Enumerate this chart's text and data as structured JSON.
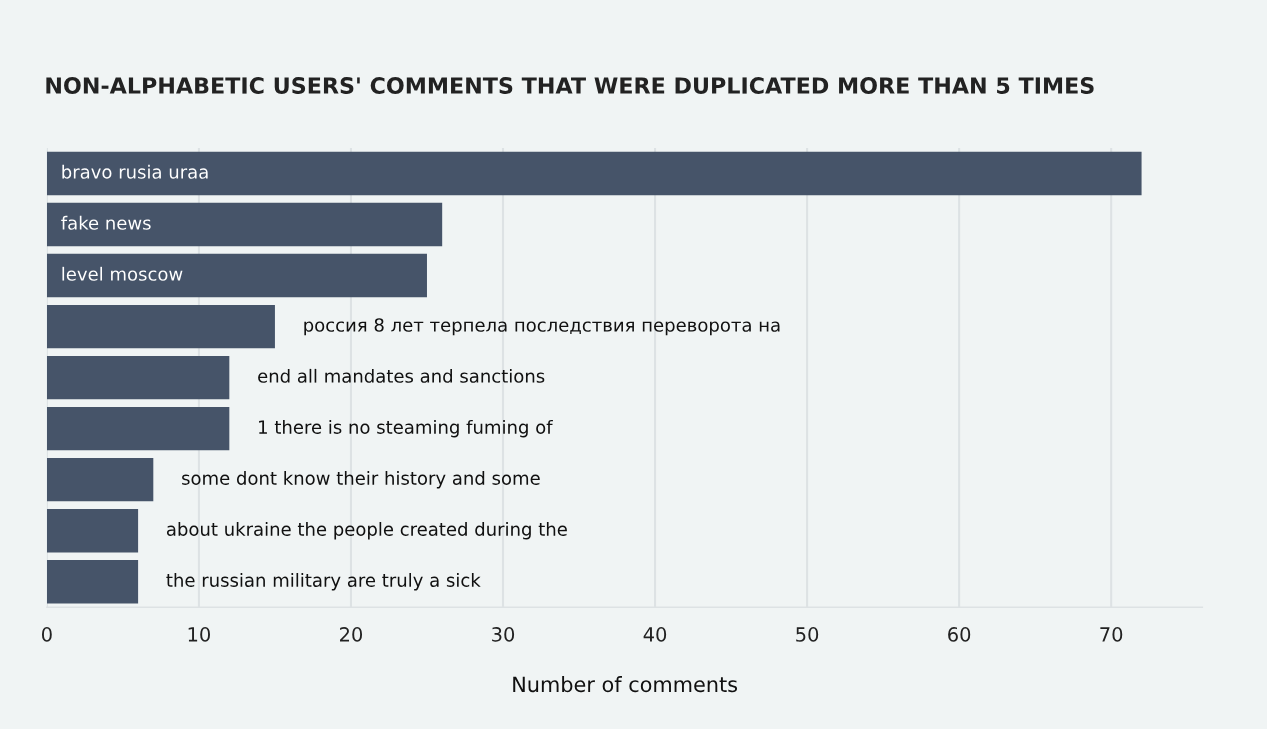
{
  "chart_data": {
    "type": "bar",
    "orientation": "horizontal",
    "title": "NON-ALPHABETIC USERS' COMMENTS THAT WERE DUPLICATED MORE THAN 5 TIMES",
    "xlabel": "Number of comments",
    "categories": [
      "bravo rusia uraa",
      "fake news",
      "level moscow",
      "россия 8 лет терпела последствия переворота на",
      "end all mandates and sanctions",
      "1 there is no steaming fuming of",
      "some dont know their history and some",
      "about ukraine the people created during the",
      "the russian military are truly a sick"
    ],
    "values": [
      72,
      26,
      25,
      15,
      12,
      12,
      7,
      6,
      6
    ],
    "color": "#465469",
    "xlim": [
      0,
      76
    ],
    "xticks": [
      0,
      10,
      20,
      30,
      40,
      50,
      60,
      70
    ],
    "grid": "x"
  }
}
